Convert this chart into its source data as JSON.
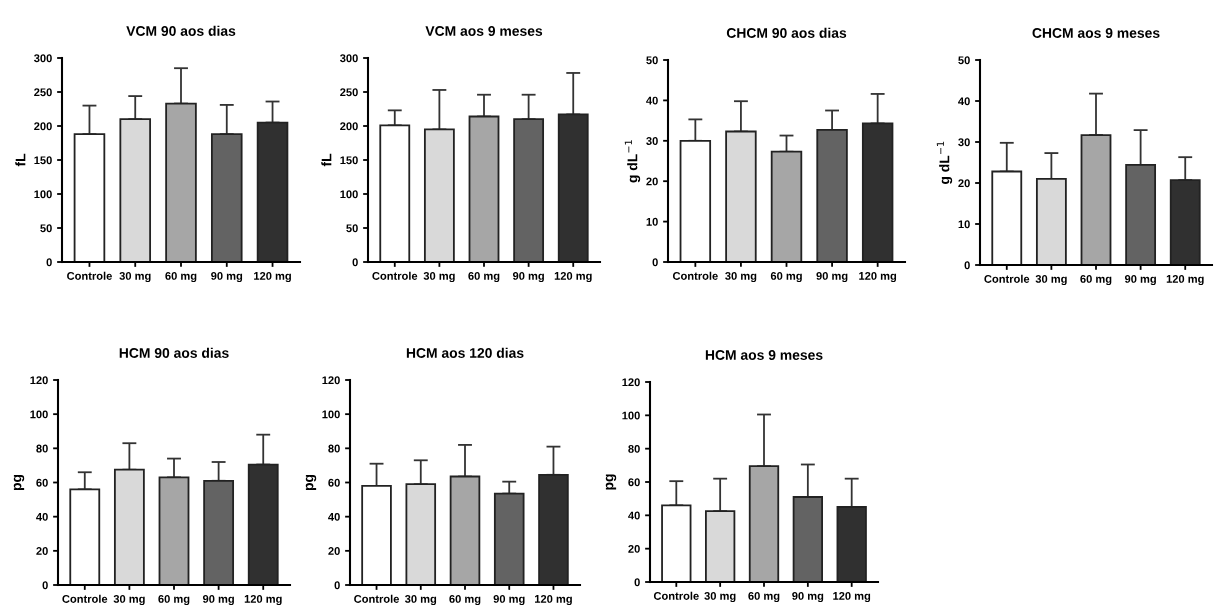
{
  "chart_data": [
    {
      "type": "bar",
      "title": "VCM 90 aos dias",
      "ylabel": "fL",
      "categories": [
        "Controle",
        "30 mg",
        "60 mg",
        "90 mg",
        "120 mg"
      ],
      "values": [
        188,
        210,
        233,
        188,
        205
      ],
      "errors": [
        [
          188,
          230
        ],
        [
          210,
          244
        ],
        [
          233,
          285
        ],
        [
          188,
          231
        ],
        [
          205,
          236
        ]
      ],
      "colors": [
        "#ffffff",
        "#d9d9d9",
        "#a6a6a6",
        "#636363",
        "#303030"
      ],
      "ylim": [
        0,
        300
      ],
      "yticks": [
        0,
        50,
        100,
        150,
        200,
        250,
        300
      ],
      "grid": false
    },
    {
      "type": "bar",
      "title": "VCM aos 9 meses",
      "ylabel": "fL",
      "categories": [
        "Controle",
        "30 mg",
        "60 mg",
        "90 mg",
        "120 mg"
      ],
      "values": [
        201,
        195,
        214,
        210,
        217
      ],
      "errors": [
        [
          201,
          223
        ],
        [
          195,
          253
        ],
        [
          214,
          246
        ],
        [
          210,
          246
        ],
        [
          217,
          278
        ]
      ],
      "colors": [
        "#ffffff",
        "#d9d9d9",
        "#a6a6a6",
        "#636363",
        "#303030"
      ],
      "ylim": [
        0,
        300
      ],
      "yticks": [
        0,
        50,
        100,
        150,
        200,
        250,
        300
      ],
      "grid": false
    },
    {
      "type": "bar",
      "title": "CHCM 90 aos dias",
      "ylabel": "g dL$^{−1}$",
      "categories": [
        "Controle",
        "30 mg",
        "60 mg",
        "90 mg",
        "120 mg"
      ],
      "values": [
        30,
        32.3,
        27.3,
        32.7,
        34.3
      ],
      "errors": [
        [
          30,
          35.3
        ],
        [
          32.3,
          39.8
        ],
        [
          27.3,
          31.3
        ],
        [
          32.7,
          37.5
        ],
        [
          34.3,
          41.6
        ]
      ],
      "colors": [
        "#ffffff",
        "#d9d9d9",
        "#a6a6a6",
        "#636363",
        "#303030"
      ],
      "ylim": [
        0,
        50
      ],
      "yticks": [
        0,
        10,
        20,
        30,
        40,
        50
      ],
      "grid": false
    },
    {
      "type": "bar",
      "title": "CHCM aos 9 meses",
      "ylabel": "g dL$^{−1}$",
      "categories": [
        "Controle",
        "30 mg",
        "60 mg",
        "90 mg",
        "120 mg"
      ],
      "values": [
        22.8,
        21,
        31.7,
        24.4,
        20.7
      ],
      "errors": [
        [
          22.8,
          29.8
        ],
        [
          21,
          27.3
        ],
        [
          31.7,
          41.8
        ],
        [
          24.4,
          32.9
        ],
        [
          20.7,
          26.3
        ]
      ],
      "colors": [
        "#ffffff",
        "#d9d9d9",
        "#a6a6a6",
        "#636363",
        "#303030"
      ],
      "ylim": [
        0,
        50
      ],
      "yticks": [
        0,
        10,
        20,
        30,
        40,
        50
      ],
      "grid": false
    },
    {
      "type": "bar",
      "title": "HCM 90 aos dias",
      "ylabel": "pg",
      "categories": [
        "Controle",
        "30 mg",
        "60 mg",
        "90 mg",
        "120 mg"
      ],
      "values": [
        56,
        67.5,
        63,
        61,
        70.5
      ],
      "errors": [
        [
          56,
          66
        ],
        [
          67.5,
          83
        ],
        [
          63,
          74
        ],
        [
          61,
          72
        ],
        [
          70.5,
          88
        ]
      ],
      "colors": [
        "#ffffff",
        "#d9d9d9",
        "#a6a6a6",
        "#636363",
        "#303030"
      ],
      "ylim": [
        0,
        120
      ],
      "yticks": [
        0,
        20,
        40,
        60,
        80,
        100,
        120
      ],
      "grid": false
    },
    {
      "type": "bar",
      "title": "HCM aos 120 dias",
      "ylabel": "pg",
      "categories": [
        "Controle",
        "30 mg",
        "60 mg",
        "90 mg",
        "120 mg"
      ],
      "values": [
        58,
        59,
        63.5,
        53.5,
        64.5
      ],
      "errors": [
        [
          58,
          71
        ],
        [
          59,
          73
        ],
        [
          63.5,
          82
        ],
        [
          53.5,
          60.5
        ],
        [
          64.5,
          81
        ]
      ],
      "colors": [
        "#ffffff",
        "#d9d9d9",
        "#a6a6a6",
        "#636363",
        "#303030"
      ],
      "ylim": [
        0,
        120
      ],
      "yticks": [
        0,
        20,
        40,
        60,
        80,
        100,
        120
      ],
      "grid": false
    },
    {
      "type": "bar",
      "title": "HCM aos 9 meses",
      "ylabel": "pg",
      "categories": [
        "Controle",
        "30 mg",
        "60 mg",
        "90 mg",
        "120 mg"
      ],
      "values": [
        46,
        42.5,
        69.5,
        51,
        45
      ],
      "errors": [
        [
          46,
          60.5
        ],
        [
          42.5,
          62
        ],
        [
          69.5,
          100.5
        ],
        [
          51,
          70.5
        ],
        [
          45,
          62
        ]
      ],
      "colors": [
        "#ffffff",
        "#d9d9d9",
        "#a6a6a6",
        "#636363",
        "#303030"
      ],
      "ylim": [
        0,
        120
      ],
      "yticks": [
        0,
        20,
        40,
        60,
        80,
        100,
        120
      ],
      "grid": false
    }
  ]
}
